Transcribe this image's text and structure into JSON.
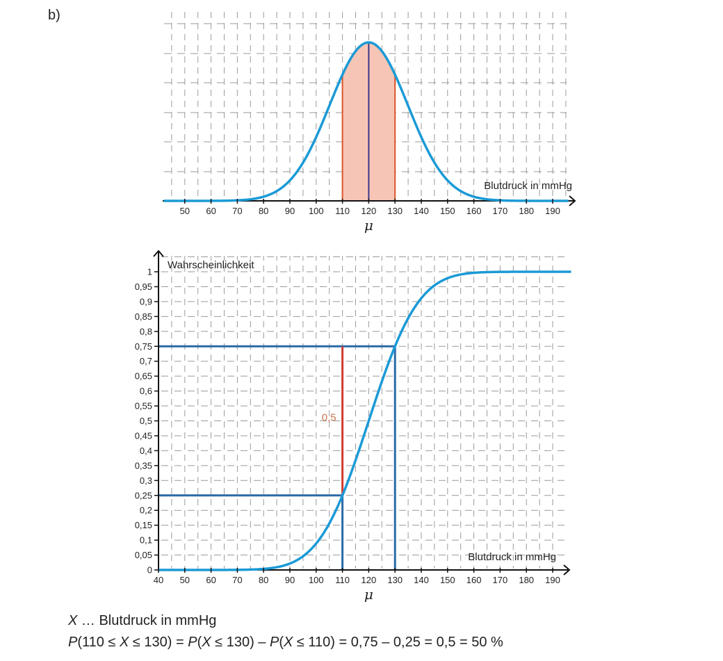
{
  "part_label": "b)",
  "chart_data": [
    {
      "type": "line",
      "name": "density",
      "description_kind": "normal distribution density",
      "mean": 120,
      "sd": 14.83,
      "xlabel": "Blutdruck in mmHg",
      "xlim": [
        40,
        195
      ],
      "xticks": [
        50,
        60,
        70,
        80,
        90,
        100,
        110,
        120,
        130,
        140,
        150,
        160,
        170,
        180,
        190
      ],
      "mean_label": "μ",
      "shaded_interval": [
        110,
        130
      ],
      "colors": {
        "curve": "#1b9ad6",
        "fill": "#f7c5b5",
        "bounds": "#d9542a",
        "mean_line": "#3d3a8a",
        "grid": "#9a9a9a",
        "axis": "#111111"
      }
    },
    {
      "type": "line",
      "name": "cdf",
      "description_kind": "cumulative distribution function",
      "mean": 120,
      "sd": 14.83,
      "xlabel": "Blutdruck in mmHg",
      "ylabel": "Wahrscheinlichkeit",
      "xlim": [
        40,
        195
      ],
      "ylim": [
        0,
        1
      ],
      "xticks": [
        40,
        50,
        60,
        70,
        80,
        90,
        100,
        110,
        120,
        130,
        140,
        150,
        160,
        170,
        180,
        190
      ],
      "yticks": [
        0,
        0.05,
        0.1,
        0.15,
        0.2,
        0.25,
        0.3,
        0.35,
        0.4,
        0.45,
        0.5,
        0.55,
        0.6,
        0.65,
        0.7,
        0.75,
        0.8,
        0.85,
        0.9,
        0.95,
        1
      ],
      "ytick_labels": [
        "0",
        "0,05",
        "0,1",
        "0,15",
        "0,2",
        "0,25",
        "0,3",
        "0,35",
        "0,4",
        "0,45",
        "0,5",
        "0,55",
        "0,6",
        "0,65",
        "0,7",
        "0,75",
        "0,8",
        "0,85",
        "0,9",
        "0,95",
        "1"
      ],
      "mean_label": "μ",
      "guides": [
        {
          "x": 110,
          "y": 0.25
        },
        {
          "x": 130,
          "y": 0.75
        }
      ],
      "difference": {
        "x": 110,
        "from": 0.25,
        "to": 0.75,
        "label": "0,5"
      },
      "colors": {
        "curve": "#1b9ad6",
        "guide": "#2a6aa6",
        "difference": "#d23a35",
        "difference_label": "#c9744c",
        "grid": "#9a9a9a",
        "axis": "#111111"
      }
    }
  ],
  "formula": {
    "line1_var": "X",
    "line1_rest": " … Blutdruck in mmHg",
    "line2_parts": [
      {
        "t": "P",
        "i": true
      },
      {
        "t": "(110 ≤ ",
        "i": false
      },
      {
        "t": "X",
        "i": true
      },
      {
        "t": " ≤ 130) = ",
        "i": false
      },
      {
        "t": "P",
        "i": true
      },
      {
        "t": "(",
        "i": false
      },
      {
        "t": "X",
        "i": true
      },
      {
        "t": " ≤ 130) – ",
        "i": false
      },
      {
        "t": "P",
        "i": true
      },
      {
        "t": "(",
        "i": false
      },
      {
        "t": "X",
        "i": true
      },
      {
        "t": " ≤ 110) = 0,75 – 0,25 = 0,5 = 50 %",
        "i": false
      }
    ]
  }
}
